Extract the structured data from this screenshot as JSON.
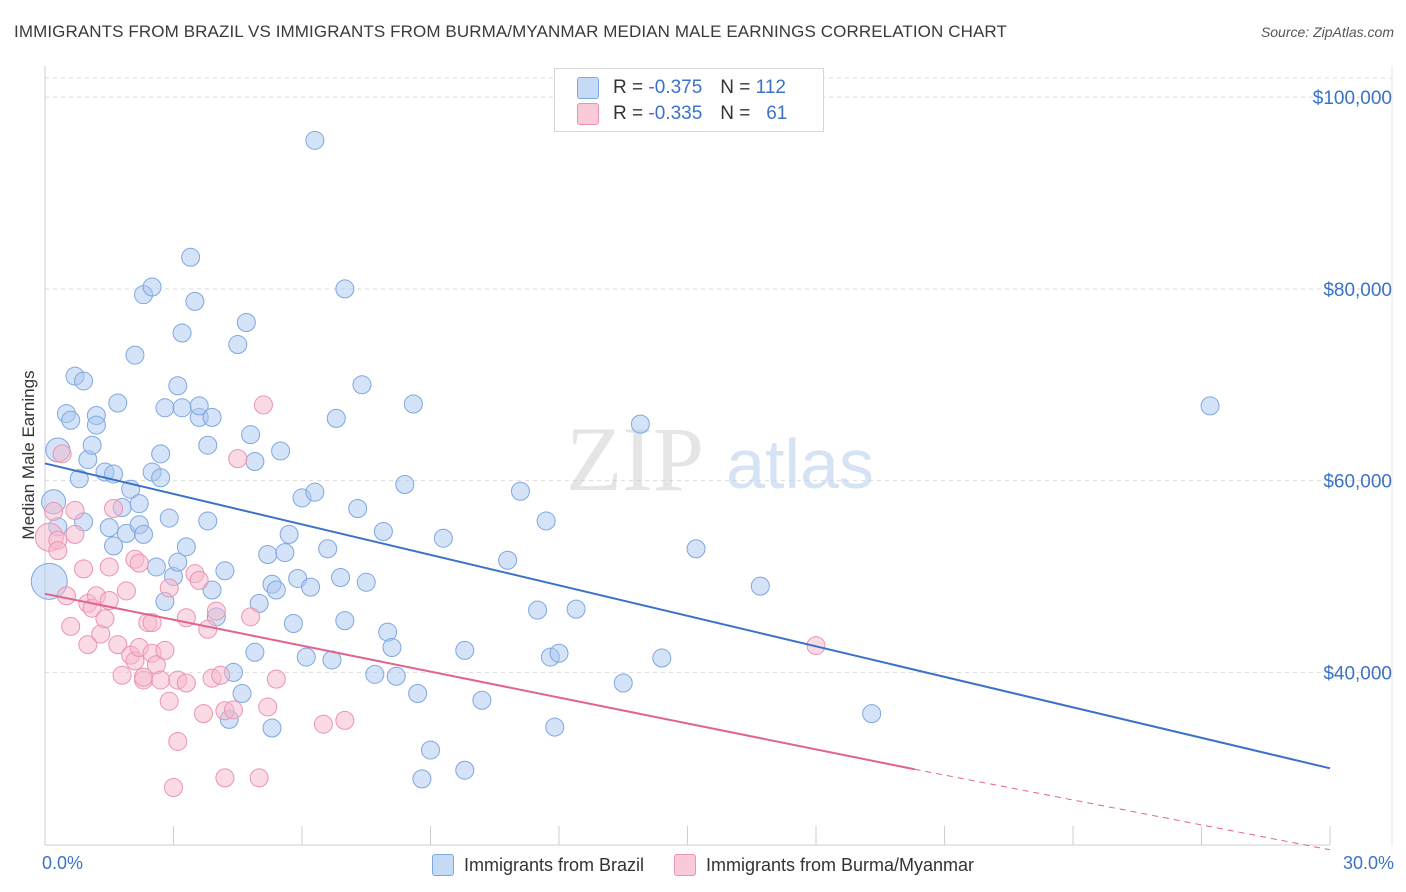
{
  "title": "IMMIGRANTS FROM BRAZIL VS IMMIGRANTS FROM BURMA/MYANMAR MEDIAN MALE EARNINGS CORRELATION CHART",
  "source": "Source: ZipAtlas.com",
  "watermark": {
    "zip": "ZIP",
    "atlas": "atlas"
  },
  "colors": {
    "blue": "#3b72c8",
    "blue_fill": "#aac8f0",
    "pink": "#e0648e",
    "pink_fill": "#f5b8cc",
    "grid": "#dcdcdc",
    "axis_text": "#3b72c8"
  },
  "legend_stats": [
    {
      "r_label": "R = ",
      "r_value": "-0.375",
      "n_label": "N = ",
      "n_value": "112"
    },
    {
      "r_label": "R = ",
      "r_value": "-0.335",
      "n_label": "N = ",
      "n_value": "61"
    }
  ],
  "chart_data": {
    "type": "scatter",
    "title": "IMMIGRANTS FROM BRAZIL VS IMMIGRANTS FROM BURMA/MYANMAR MEDIAN MALE EARNINGS CORRELATION CHART",
    "xlabel": "",
    "ylabel": "Median Male Earnings",
    "xlim": [
      0,
      30
    ],
    "ylim": [
      22000,
      102000
    ],
    "x_tick_labels": [
      "0.0%",
      "30.0%"
    ],
    "y_ticks": [
      40000,
      60000,
      80000,
      100000
    ],
    "y_tick_labels": [
      "$40,000",
      "$60,000",
      "$80,000",
      "$100,000"
    ],
    "grid": true,
    "legend_position": "top-center",
    "series": [
      {
        "name": "Immigrants from Brazil",
        "r": -0.375,
        "n": 112,
        "trend": {
          "x": [
            0,
            30
          ],
          "y": [
            61800,
            30000
          ]
        },
        "points": [
          [
            0.1,
            49500
          ],
          [
            0.2,
            57800
          ],
          [
            0.3,
            63200
          ],
          [
            0.3,
            55200
          ],
          [
            0.5,
            67000
          ],
          [
            0.6,
            66300
          ],
          [
            0.7,
            70900
          ],
          [
            0.8,
            60200
          ],
          [
            0.9,
            70400
          ],
          [
            0.9,
            55700
          ],
          [
            1.0,
            62200
          ],
          [
            1.1,
            63700
          ],
          [
            1.2,
            66800
          ],
          [
            1.2,
            65800
          ],
          [
            1.4,
            60900
          ],
          [
            1.5,
            55100
          ],
          [
            1.6,
            60700
          ],
          [
            1.6,
            53200
          ],
          [
            1.7,
            68100
          ],
          [
            1.8,
            57200
          ],
          [
            1.9,
            54500
          ],
          [
            2.0,
            59100
          ],
          [
            2.1,
            73100
          ],
          [
            2.2,
            55400
          ],
          [
            2.2,
            57600
          ],
          [
            2.3,
            54400
          ],
          [
            2.3,
            79400
          ],
          [
            2.5,
            60900
          ],
          [
            2.5,
            80200
          ],
          [
            2.6,
            51000
          ],
          [
            2.7,
            62800
          ],
          [
            2.7,
            60300
          ],
          [
            2.8,
            67600
          ],
          [
            2.8,
            47400
          ],
          [
            2.9,
            56100
          ],
          [
            3.0,
            50000
          ],
          [
            3.1,
            51500
          ],
          [
            3.1,
            69900
          ],
          [
            3.2,
            67600
          ],
          [
            3.2,
            75400
          ],
          [
            3.3,
            53100
          ],
          [
            3.4,
            83300
          ],
          [
            3.5,
            78700
          ],
          [
            3.6,
            66600
          ],
          [
            3.6,
            67800
          ],
          [
            3.8,
            63700
          ],
          [
            3.8,
            55800
          ],
          [
            3.9,
            48600
          ],
          [
            3.9,
            66600
          ],
          [
            4.0,
            45800
          ],
          [
            4.2,
            50600
          ],
          [
            4.3,
            35100
          ],
          [
            4.4,
            40000
          ],
          [
            4.5,
            74200
          ],
          [
            4.6,
            37800
          ],
          [
            4.7,
            76500
          ],
          [
            4.8,
            64800
          ],
          [
            4.9,
            62000
          ],
          [
            4.9,
            42100
          ],
          [
            5.0,
            47200
          ],
          [
            5.2,
            52300
          ],
          [
            5.3,
            34200
          ],
          [
            5.3,
            49200
          ],
          [
            5.4,
            48600
          ],
          [
            5.5,
            63100
          ],
          [
            5.6,
            52500
          ],
          [
            5.7,
            54400
          ],
          [
            5.8,
            45100
          ],
          [
            5.9,
            49800
          ],
          [
            6.0,
            58200
          ],
          [
            6.1,
            41600
          ],
          [
            6.2,
            48900
          ],
          [
            6.3,
            58800
          ],
          [
            6.3,
            95500
          ],
          [
            6.6,
            52900
          ],
          [
            6.7,
            41300
          ],
          [
            6.8,
            66500
          ],
          [
            6.9,
            49900
          ],
          [
            7.0,
            45400
          ],
          [
            7.0,
            80000
          ],
          [
            7.3,
            57100
          ],
          [
            7.4,
            70000
          ],
          [
            7.5,
            49400
          ],
          [
            7.7,
            39800
          ],
          [
            7.9,
            54700
          ],
          [
            8.0,
            44200
          ],
          [
            8.1,
            42600
          ],
          [
            8.2,
            39600
          ],
          [
            8.4,
            59600
          ],
          [
            8.6,
            68000
          ],
          [
            8.7,
            37800
          ],
          [
            8.8,
            28900
          ],
          [
            9.0,
            31900
          ],
          [
            9.3,
            54000
          ],
          [
            9.8,
            42300
          ],
          [
            9.8,
            29800
          ],
          [
            10.2,
            37100
          ],
          [
            10.8,
            51700
          ],
          [
            11.1,
            58900
          ],
          [
            11.5,
            46500
          ],
          [
            11.7,
            55800
          ],
          [
            11.8,
            41600
          ],
          [
            11.9,
            34300
          ],
          [
            12.0,
            42000
          ],
          [
            12.4,
            46600
          ],
          [
            13.5,
            38900
          ],
          [
            13.9,
            65900
          ],
          [
            14.4,
            41500
          ],
          [
            15.2,
            52900
          ],
          [
            16.7,
            49000
          ],
          [
            19.3,
            35700
          ],
          [
            27.2,
            67800
          ]
        ]
      },
      {
        "name": "Immigrants from Burma/Myanmar",
        "r": -0.335,
        "n": 61,
        "trend": {
          "x": [
            0,
            20.3
          ],
          "y": [
            48200,
            29900
          ]
        },
        "trend_dashed": {
          "x": [
            20.3,
            30
          ],
          "y": [
            29900,
            21500
          ]
        },
        "points": [
          [
            0.1,
            54100
          ],
          [
            0.2,
            56800
          ],
          [
            0.3,
            53800
          ],
          [
            0.3,
            52700
          ],
          [
            0.4,
            62800
          ],
          [
            0.5,
            48000
          ],
          [
            0.6,
            44800
          ],
          [
            0.7,
            54400
          ],
          [
            0.7,
            56900
          ],
          [
            0.9,
            50800
          ],
          [
            1.0,
            47200
          ],
          [
            1.0,
            42900
          ],
          [
            1.1,
            46700
          ],
          [
            1.2,
            48000
          ],
          [
            1.3,
            44000
          ],
          [
            1.4,
            45600
          ],
          [
            1.5,
            51000
          ],
          [
            1.5,
            47500
          ],
          [
            1.6,
            57100
          ],
          [
            1.7,
            42900
          ],
          [
            1.8,
            39700
          ],
          [
            1.9,
            48500
          ],
          [
            2.0,
            41800
          ],
          [
            2.1,
            41200
          ],
          [
            2.1,
            51800
          ],
          [
            2.2,
            51400
          ],
          [
            2.2,
            42600
          ],
          [
            2.3,
            39200
          ],
          [
            2.3,
            39500
          ],
          [
            2.4,
            45200
          ],
          [
            2.5,
            45200
          ],
          [
            2.5,
            42000
          ],
          [
            2.6,
            40800
          ],
          [
            2.7,
            39200
          ],
          [
            2.8,
            42300
          ],
          [
            2.9,
            48800
          ],
          [
            2.9,
            37000
          ],
          [
            3.0,
            28000
          ],
          [
            3.1,
            32800
          ],
          [
            3.1,
            39200
          ],
          [
            3.3,
            45700
          ],
          [
            3.3,
            38900
          ],
          [
            3.5,
            50300
          ],
          [
            3.6,
            49600
          ],
          [
            3.7,
            35700
          ],
          [
            3.8,
            44500
          ],
          [
            3.9,
            39400
          ],
          [
            4.0,
            46400
          ],
          [
            4.1,
            39700
          ],
          [
            4.2,
            29000
          ],
          [
            4.2,
            36000
          ],
          [
            4.4,
            36100
          ],
          [
            4.5,
            62300
          ],
          [
            4.8,
            45800
          ],
          [
            5.0,
            29000
          ],
          [
            5.1,
            67900
          ],
          [
            5.2,
            36400
          ],
          [
            5.4,
            39300
          ],
          [
            6.5,
            34600
          ],
          [
            7.0,
            35000
          ],
          [
            18.0,
            42800
          ]
        ]
      }
    ]
  }
}
